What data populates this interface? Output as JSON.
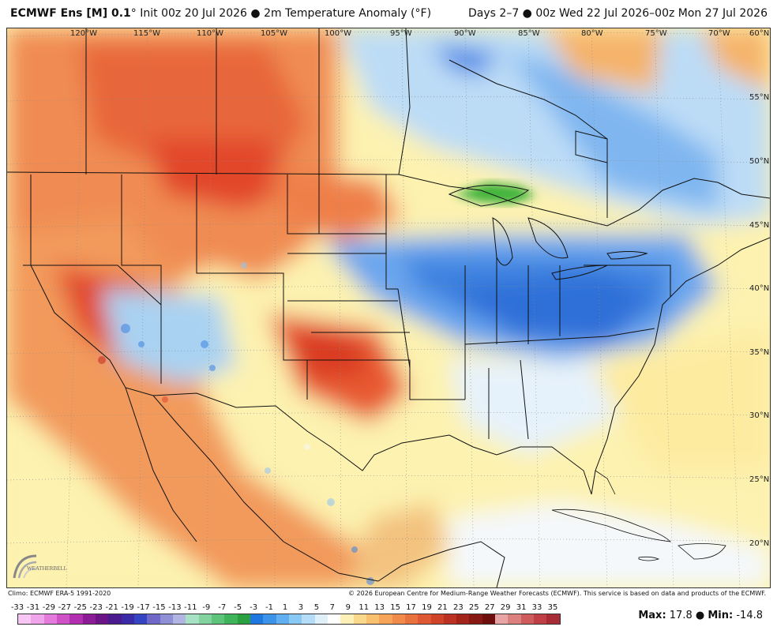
{
  "title": {
    "model": "ECMWF Ens [M] 0.1",
    "degree": "°",
    "init": "Init 00z 20 Jul 2026",
    "bullet": "●",
    "field": "2m Temperature Anomaly (°F)",
    "valid": "Days 2–7 ● 00z Wed 22 Jul 2026–00z Mon 27 Jul 2026"
  },
  "map": {
    "longitude_labels": [
      "120°W",
      "115°W",
      "110°W",
      "105°W",
      "100°W",
      "95°W",
      "90°W",
      "85°W",
      "80°W",
      "75°W",
      "70°W"
    ],
    "latitude_labels": [
      "60°N",
      "55°N",
      "50°N",
      "45°N",
      "40°N",
      "35°N",
      "30°N",
      "25°N",
      "20°N"
    ],
    "colors": {
      "ocean_neutral": "#fdf2b0",
      "warm": "#f08c52",
      "hot": "#e2472a",
      "cool": "#a9d2f2",
      "cold": "#4a8fe8",
      "very_cold": "#2f6fd8",
      "green_anomaly": "#3fb33a"
    }
  },
  "logo": {
    "text": "WEATHERBELL"
  },
  "credits": {
    "left": "Climo: ECMWF ERA-5 1991-2020",
    "right": "© 2026 European Centre for Medium-Range Weather Forecasts (ECMWF). This service is based on data and products of the ECMWF."
  },
  "legend": {
    "labels": [
      "-33",
      "-31",
      "-29",
      "-27",
      "-25",
      "-23",
      "-21",
      "-19",
      "-17",
      "-15",
      "-13",
      "-11",
      "-9",
      "-7",
      "-5",
      "-3",
      "-1",
      "1",
      "3",
      "5",
      "7",
      "9",
      "11",
      "13",
      "15",
      "17",
      "19",
      "21",
      "23",
      "25",
      "27",
      "29",
      "31",
      "33",
      "35"
    ],
    "colors": [
      "#f7c6f2",
      "#f0a4ea",
      "#e27bdb",
      "#cf52c7",
      "#b12fb0",
      "#8c1c96",
      "#6a1488",
      "#4a1a8f",
      "#3b2aa8",
      "#3544c2",
      "#6f68c9",
      "#8f8fd6",
      "#b2b5e2",
      "#a7e2c5",
      "#83d39f",
      "#5fc47b",
      "#40b45a",
      "#2aa040",
      "#1e78e0",
      "#3d92ea",
      "#61aef1",
      "#8ac8f6",
      "#b6ddf8",
      "#dff0fb",
      "#ffffff",
      "#fdf0b8",
      "#fbd98c",
      "#f9c070",
      "#f6a45a",
      "#f18a4a",
      "#e9703f",
      "#de5833",
      "#cf4329",
      "#bb3222",
      "#a2241b",
      "#871814",
      "#6e0f0e",
      "#e8a5a5",
      "#dc8080",
      "#cf5c5c",
      "#bf3f44",
      "#a82c36"
    ]
  },
  "stats": {
    "max_label": "Max:",
    "max_value": "17.8",
    "sep": "●",
    "min_label": "Min:",
    "min_value": "-14.8"
  }
}
